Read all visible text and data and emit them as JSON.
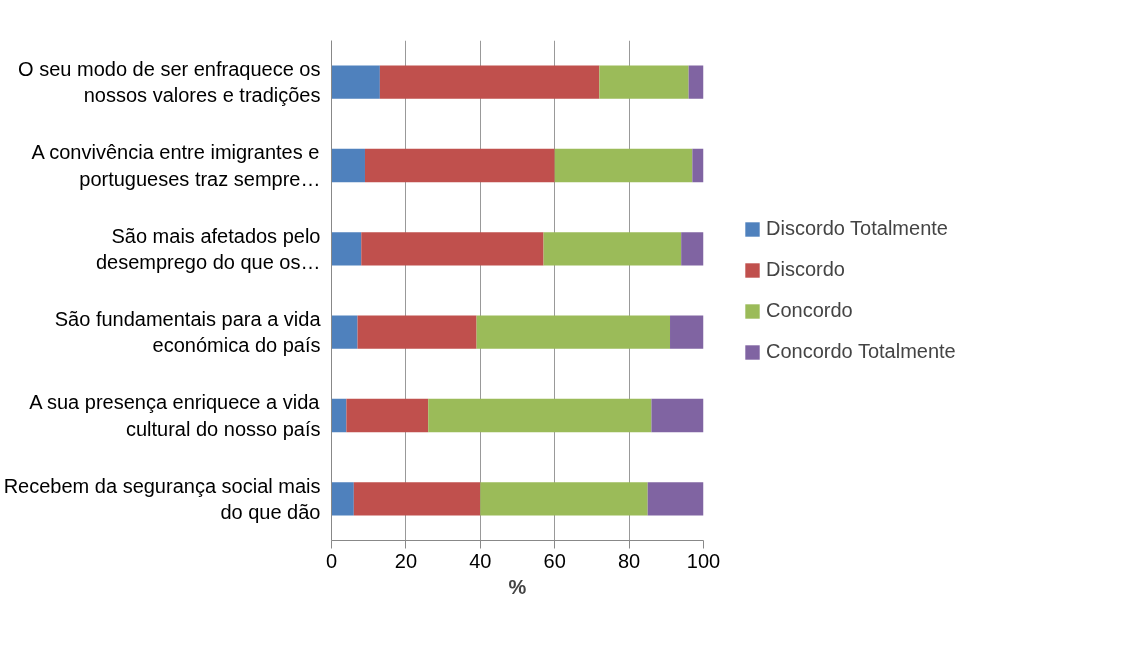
{
  "chart_data": {
    "type": "bar",
    "orientation": "horizontal",
    "stacked": true,
    "xlabel": "%",
    "categories": [
      "O seu modo de ser enfraquece os\nnossos valores e tradições",
      "A convivência entre imigrantes e\nportugueses traz sempre…",
      "São mais afetados pelo\ndesemprego do que os…",
      "São fundamentais para a vida\neconómica do país",
      "A sua presença enriquece a vida\ncultural do nosso país",
      "Recebem da segurança social mais\ndo que dão"
    ],
    "series": [
      {
        "name": "Discordo Totalmente",
        "color": "#4f81bd",
        "values": [
          13,
          9,
          8,
          7,
          4,
          6
        ]
      },
      {
        "name": "Discordo",
        "color": "#c0504d",
        "values": [
          59,
          51,
          49,
          32,
          22,
          34
        ]
      },
      {
        "name": "Concordo",
        "color": "#9bbb59",
        "values": [
          24,
          37,
          37,
          52,
          60,
          45
        ]
      },
      {
        "name": "Concordo Totalmente",
        "color": "#8064a2",
        "values": [
          4,
          3,
          6,
          9,
          14,
          15
        ]
      }
    ],
    "xlim": [
      0,
      100
    ],
    "xticks": [
      0,
      20,
      40,
      60,
      80,
      100
    ],
    "grid": "x",
    "legend": "right"
  }
}
